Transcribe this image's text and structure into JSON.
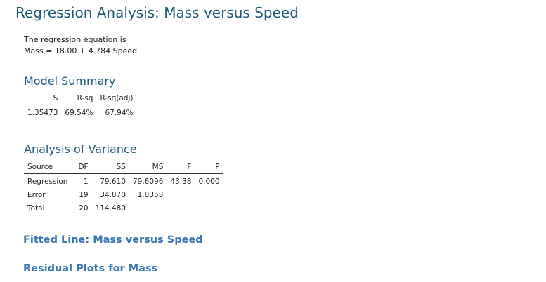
{
  "title": "Regression Analysis: Mass versus Speed",
  "equation": {
    "intro": "The regression equation is",
    "formula": "Mass = 18.00 + 4.784 Speed"
  },
  "model_summary": {
    "heading": "Model Summary",
    "columns": [
      "S",
      "R-sq",
      "R-sq(adj)"
    ],
    "row": [
      "1.35473",
      "69.54%",
      "67.94%"
    ]
  },
  "anova": {
    "heading": "Analysis of Variance",
    "columns": [
      "Source",
      "DF",
      "SS",
      "MS",
      "F",
      "P"
    ],
    "rows": [
      [
        "Regression",
        "1",
        "79.610",
        "79.6096",
        "43.38",
        "0.000"
      ],
      [
        "Error",
        "19",
        "34.870",
        "1.8353",
        "",
        ""
      ],
      [
        "Total",
        "20",
        "114.480",
        "",
        "",
        ""
      ]
    ]
  },
  "links": {
    "fitted_line": "Fitted Line: Mass versus Speed",
    "residual_plots": "Residual Plots for Mass"
  },
  "colors": {
    "heading": "#1f5878",
    "link": "#3a78b5",
    "text": "#222222"
  }
}
